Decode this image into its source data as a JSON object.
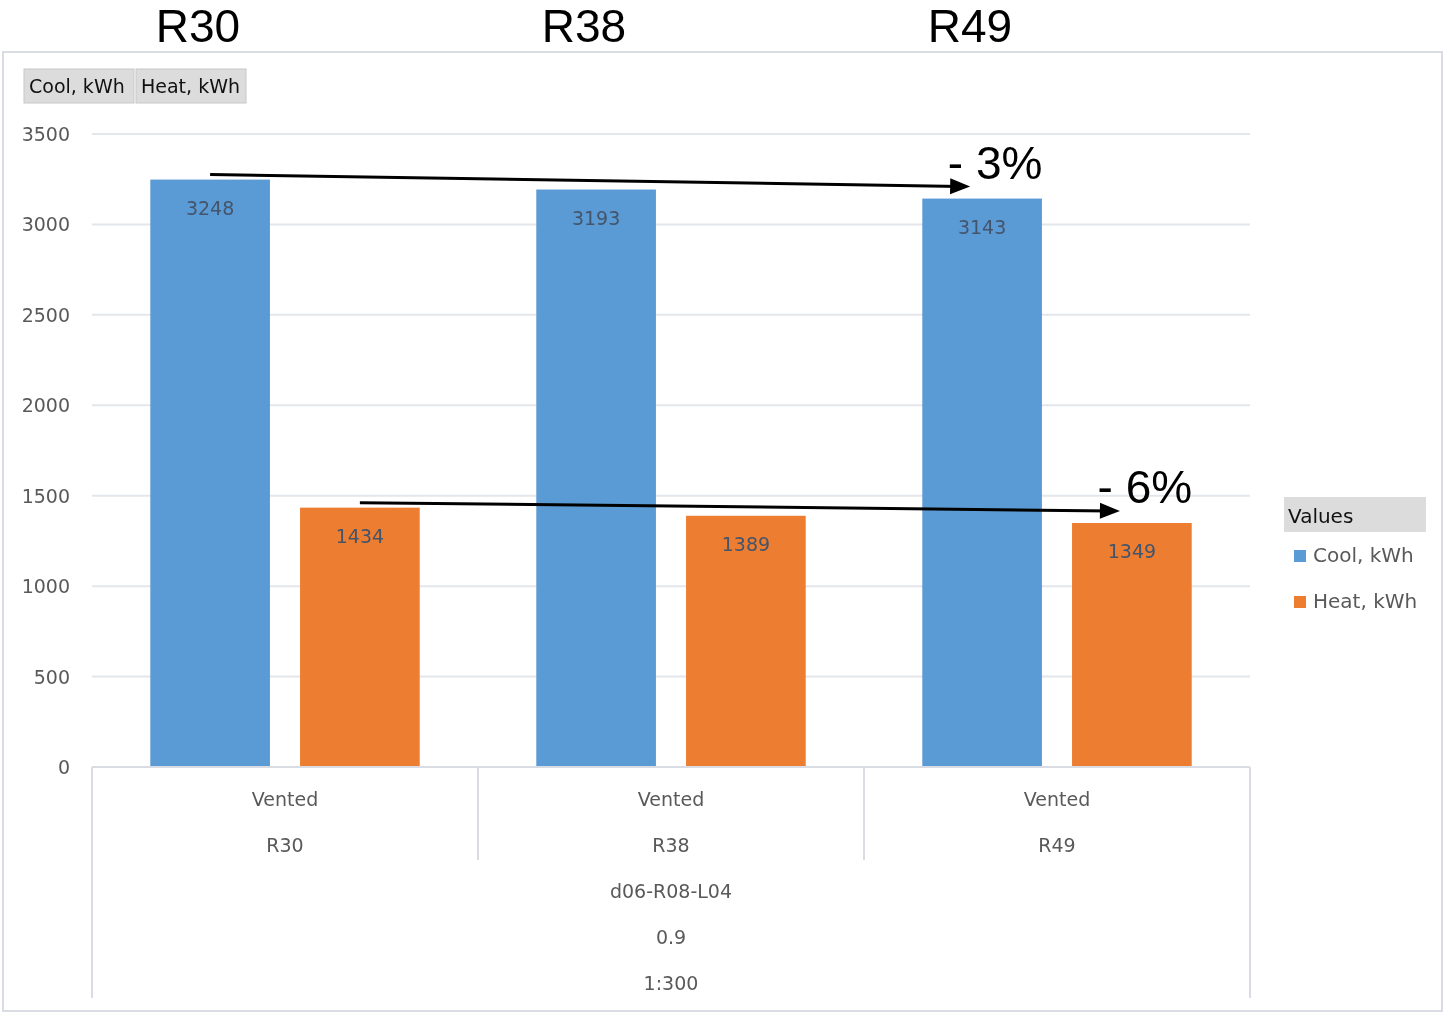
{
  "chart_data": {
    "type": "bar",
    "categories": [
      "Vented\nR30",
      "Vented\nR38",
      "Vented\nR49"
    ],
    "series": [
      {
        "name": "Cool, kWh",
        "color": "#5b9bd5",
        "values": [
          3248,
          3193,
          3143
        ]
      },
      {
        "name": "Heat, kWh",
        "color": "#ed7d31",
        "values": [
          1434,
          1389,
          1349
        ]
      }
    ],
    "ylim": [
      0,
      3500
    ],
    "yticks": [
      0,
      500,
      1000,
      1500,
      2000,
      2500,
      3000,
      3500
    ],
    "grid": "y",
    "data_labels": true,
    "legend": "right",
    "legend_title": "Values",
    "annotations": [
      "R30",
      "R38",
      "R49",
      "- 3%",
      "- 6%",
      "d06-R08-L04",
      "0.9",
      "1:300"
    ]
  }
}
